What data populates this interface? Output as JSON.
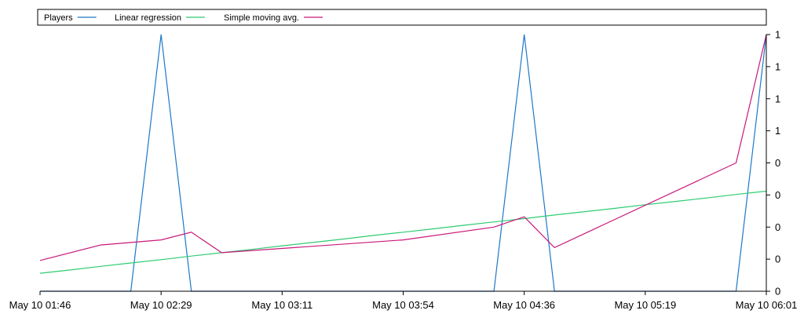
{
  "chart_data": {
    "type": "line",
    "x_tick_labels": [
      "May 10 01:46",
      "May 10 02:29",
      "May 10 03:11",
      "May 10 03:54",
      "May 10 04:36",
      "May 10 05:19",
      "May 10 06:01"
    ],
    "y_tick_labels": [
      "0",
      "0",
      "0",
      "0",
      "0",
      "1",
      "1",
      "1",
      "1"
    ],
    "ylim": [
      0,
      1
    ],
    "grid": false,
    "legend_position": "top",
    "x": [
      "01:46",
      "01:56",
      "02:07",
      "02:18",
      "02:29",
      "02:39",
      "02:50",
      "03:01",
      "03:11",
      "03:22",
      "03:33",
      "03:43",
      "03:54",
      "04:05",
      "04:15",
      "04:26",
      "04:36",
      "04:47",
      "04:58",
      "05:08",
      "05:19",
      "05:30",
      "05:40",
      "05:51",
      "06:01"
    ],
    "series": [
      {
        "name": "Players",
        "color": "#1f78c8",
        "values": [
          0,
          0,
          0,
          0,
          1,
          0,
          0,
          0,
          0,
          0,
          0,
          0,
          0,
          0,
          0,
          0,
          1,
          0,
          0,
          0,
          0,
          0,
          0,
          0,
          1
        ]
      },
      {
        "name": "Linear regression",
        "color": "#2ecc71",
        "values": [
          0.07,
          0.083,
          0.097,
          0.11,
          0.123,
          0.137,
          0.15,
          0.163,
          0.177,
          0.19,
          0.203,
          0.217,
          0.23,
          0.243,
          0.257,
          0.27,
          0.283,
          0.297,
          0.31,
          0.323,
          0.337,
          0.35,
          0.363,
          0.377,
          0.39
        ]
      },
      {
        "name": "Simple moving avg.",
        "color": "#c8197a",
        "values": [
          0.12,
          null,
          0.18,
          null,
          0.2,
          0.23,
          0.15,
          null,
          null,
          null,
          null,
          null,
          0.2,
          null,
          null,
          0.25,
          0.29,
          0.17,
          null,
          null,
          null,
          null,
          null,
          0.5,
          1
        ]
      }
    ]
  }
}
